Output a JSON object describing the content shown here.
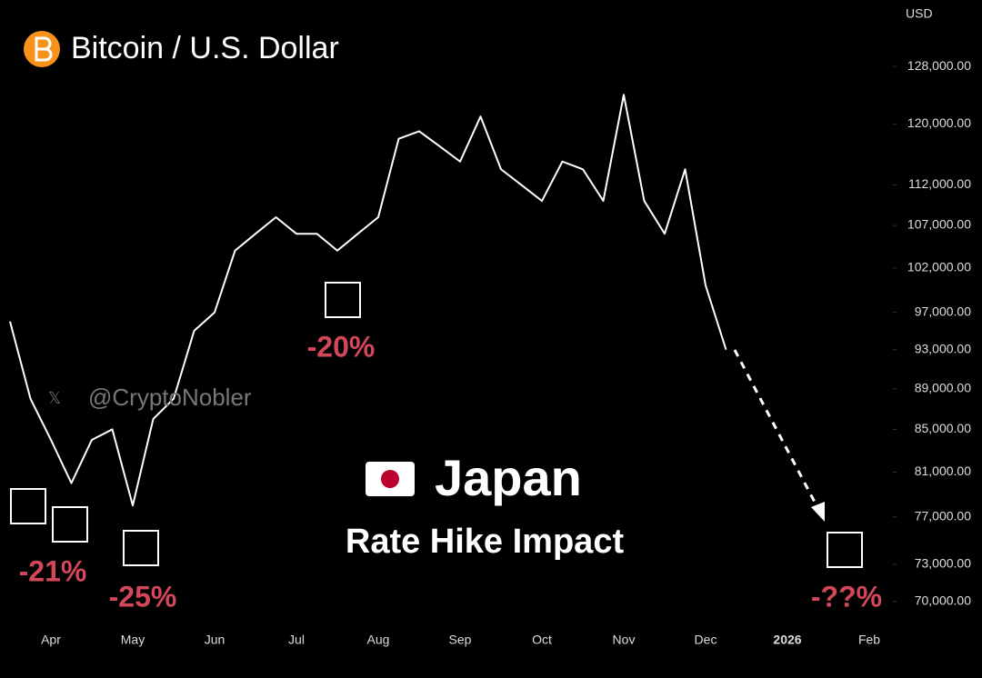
{
  "chart_data": {
    "type": "line",
    "title": "Bitcoin / U.S. Dollar",
    "currency": "USD",
    "watermark": "@CryptoNobler",
    "headline": "Japan",
    "subheadline": "Rate Hike Impact",
    "annotations": [
      "-21%",
      "-25%",
      "-20%",
      "-??%"
    ],
    "log_scale": true,
    "categories": [
      null,
      null,
      "Apr",
      null,
      null,
      null,
      "May",
      null,
      null,
      null,
      "Jun",
      null,
      null,
      null,
      "Jul",
      null,
      null,
      null,
      "Aug",
      null,
      null,
      null,
      "Sep",
      null,
      null,
      null,
      "Oct",
      null,
      null,
      null,
      "Nov",
      null,
      null,
      null,
      "Dec",
      null,
      null,
      null,
      "2026",
      null,
      null,
      null,
      "Feb"
    ],
    "series": [
      {
        "color": "#ffffff",
        "values": [
          96000,
          88000,
          84000,
          80000,
          84000,
          85000,
          78000,
          86000,
          88000,
          95000,
          97000,
          104000,
          106000,
          108000,
          106000,
          106000,
          104000,
          106000,
          108000,
          118000,
          119000,
          117000,
          115000,
          121000,
          114000,
          112000,
          110000,
          115000,
          114000,
          110000,
          124000,
          110000,
          106000,
          114000,
          100000,
          93000,
          null,
          null,
          null,
          null,
          null,
          null,
          null
        ]
      }
    ],
    "ylim": [
      68000,
      138000
    ],
    "yticks": [
      {
        "value": 70000,
        "label": "70,000.00"
      },
      {
        "value": 73000,
        "label": "73,000.00"
      },
      {
        "value": 77000,
        "label": "77,000.00"
      },
      {
        "value": 81000,
        "label": "81,000.00"
      },
      {
        "value": 85000,
        "label": "85,000.00"
      },
      {
        "value": 89000,
        "label": "89,000.00"
      },
      {
        "value": 93000,
        "label": "93,000.00"
      },
      {
        "value": 97000,
        "label": "97,000.00"
      },
      {
        "value": 102000,
        "label": "102,000.00"
      },
      {
        "value": 107000,
        "label": "107,000.00"
      },
      {
        "value": 112000,
        "label": "112,000.00"
      },
      {
        "value": 120000,
        "label": "120,000.00"
      },
      {
        "value": 128000,
        "label": "128,000.00"
      }
    ]
  }
}
